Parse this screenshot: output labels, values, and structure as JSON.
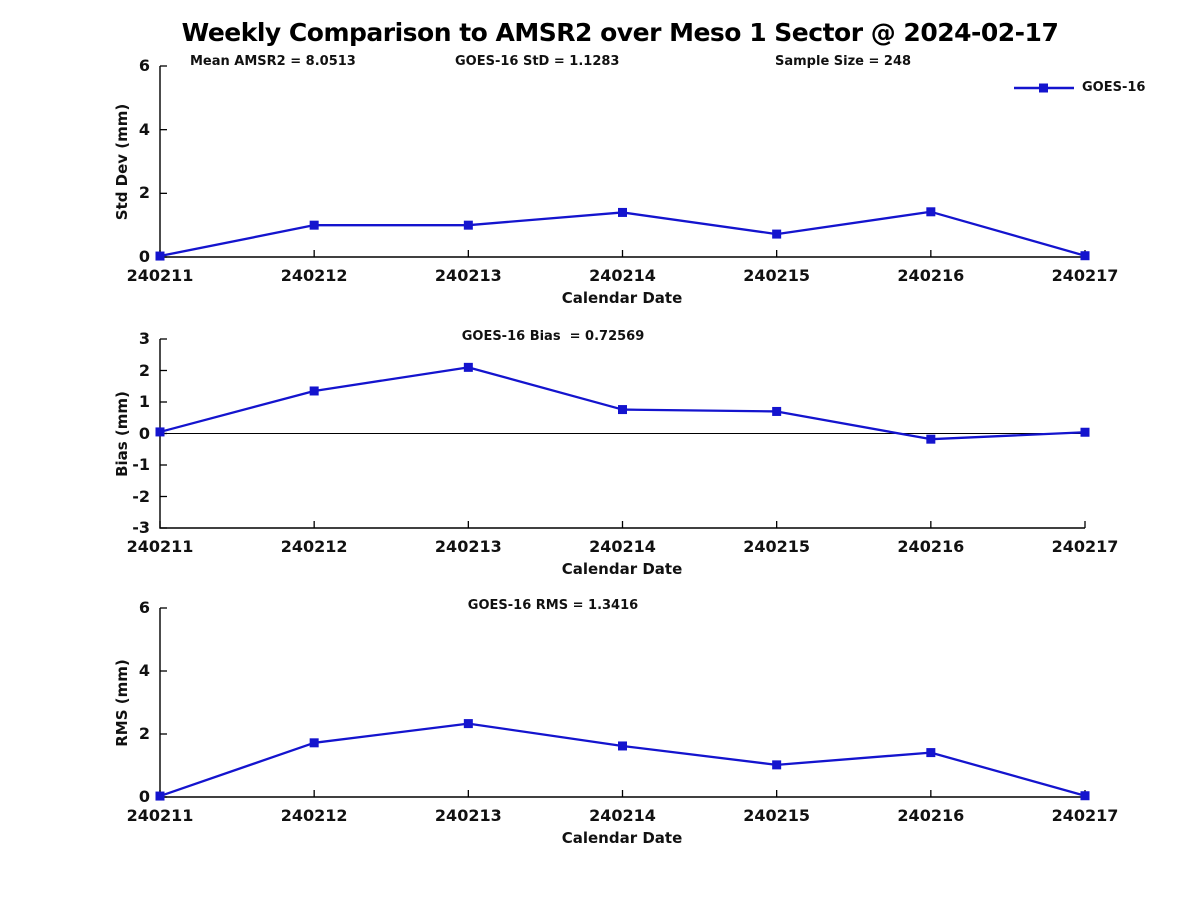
{
  "title": "Weekly Comparison to AMSR2 over Meso 1 Sector @ 2024-02-17",
  "stats": {
    "mean_amsr2": "Mean AMSR2 = 8.0513",
    "goes16_std": "GOES-16 StD = 1.1283",
    "sample_size": "Sample Size = 248"
  },
  "legend": {
    "label": "GOES-16",
    "position": "top-right",
    "marker": "filled-square"
  },
  "colors": {
    "line": "#1414CE",
    "axis": "#000000",
    "text": "#111111",
    "background": "#ffffff"
  },
  "chart_data": [
    {
      "type": "line",
      "title": "",
      "ylabel": "Std Dev (mm)",
      "xlabel": "Calendar Date",
      "categories": [
        "240211",
        "240212",
        "240213",
        "240214",
        "240215",
        "240216",
        "240217"
      ],
      "series": [
        {
          "name": "GOES-16",
          "values": [
            0.03,
            1.0,
            1.0,
            1.4,
            0.72,
            1.42,
            0.04
          ]
        }
      ],
      "ylim": [
        0,
        6
      ],
      "yticks": [
        0,
        2,
        4,
        6
      ],
      "grid": false,
      "zero_line": false
    },
    {
      "type": "line",
      "title": "GOES-16 Bias  = 0.72569",
      "ylabel": "Bias (mm)",
      "xlabel": "Calendar Date",
      "categories": [
        "240211",
        "240212",
        "240213",
        "240214",
        "240215",
        "240216",
        "240217"
      ],
      "series": [
        {
          "name": "GOES-16",
          "values": [
            0.05,
            1.35,
            2.1,
            0.76,
            0.7,
            -0.18,
            0.04
          ]
        }
      ],
      "ylim": [
        -3,
        3
      ],
      "yticks": [
        3,
        2,
        1,
        0,
        -1,
        -2,
        -3
      ],
      "grid": false,
      "zero_line": true
    },
    {
      "type": "line",
      "title": "GOES-16 RMS = 1.3416",
      "ylabel": "RMS (mm)",
      "xlabel": "Calendar Date",
      "categories": [
        "240211",
        "240212",
        "240213",
        "240214",
        "240215",
        "240216",
        "240217"
      ],
      "series": [
        {
          "name": "GOES-16",
          "values": [
            0.03,
            1.72,
            2.33,
            1.62,
            1.02,
            1.41,
            0.04
          ]
        }
      ],
      "ylim": [
        0,
        6
      ],
      "yticks": [
        0,
        2,
        4,
        6
      ],
      "grid": false,
      "zero_line": false
    }
  ]
}
